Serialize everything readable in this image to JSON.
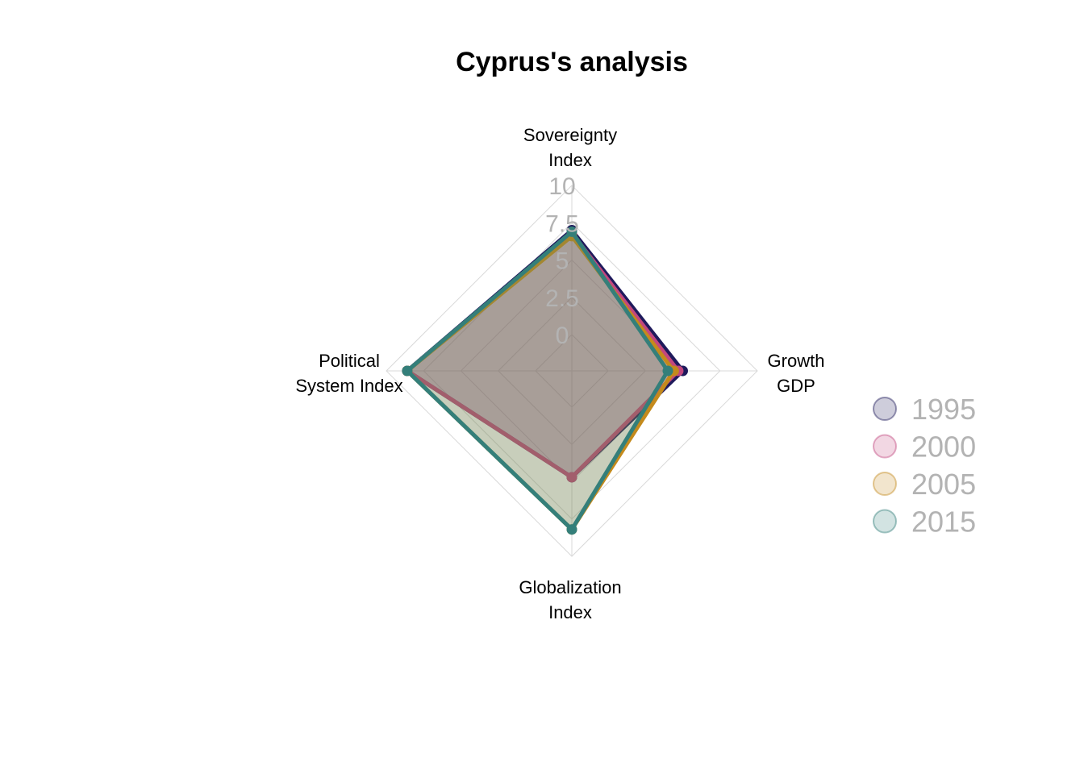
{
  "title": "Cyprus's analysis",
  "chart_data": {
    "type": "radar",
    "title": "Cyprus's analysis",
    "axes": [
      {
        "lines": [
          "Sovereignty",
          "Index"
        ]
      },
      {
        "lines": [
          "Growth",
          "GDP"
        ]
      },
      {
        "lines": [
          "Globalization",
          "Index"
        ]
      },
      {
        "lines": [
          "Political",
          "System Index"
        ]
      }
    ],
    "range": [
      0,
      10
    ],
    "ticks": [
      "0",
      "2.5",
      "5",
      "7.5",
      "10"
    ],
    "grid": true,
    "legend_position": "right",
    "series": [
      {
        "name": "1995",
        "color": "#1f1a5c",
        "values": [
          7.0,
          5.0,
          4.7,
          8.6
        ]
      },
      {
        "name": "2000",
        "color": "#c2477e",
        "values": [
          6.8,
          4.7,
          4.7,
          8.6
        ]
      },
      {
        "name": "2005",
        "color": "#c48a1c",
        "values": [
          6.6,
          4.4,
          8.2,
          8.6
        ]
      },
      {
        "name": "2015",
        "color": "#347f7a",
        "values": [
          6.9,
          4.0,
          8.2,
          8.6
        ]
      }
    ]
  }
}
